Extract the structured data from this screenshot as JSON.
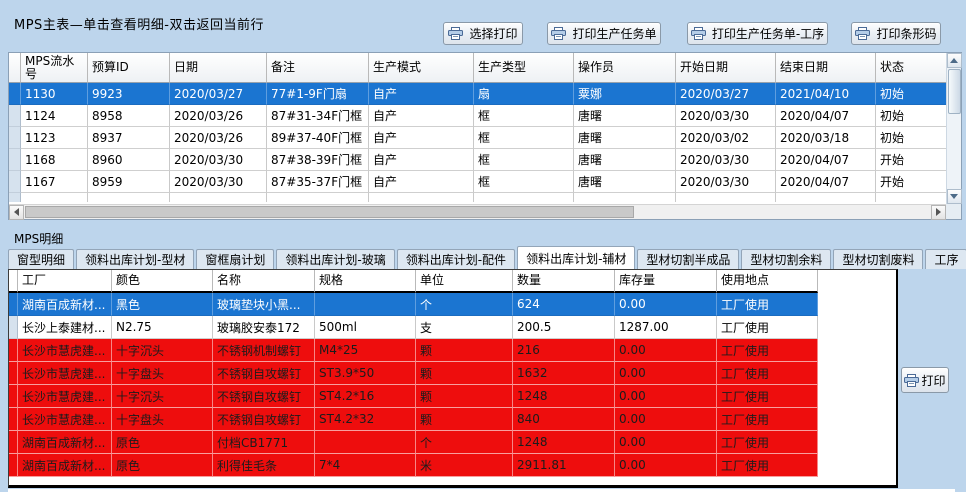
{
  "colors": {
    "selection_row": "#1b75d1",
    "alert_row": "#ee0d0d",
    "background": "#bdd5ec",
    "selected_text": "#ffffff"
  },
  "master": {
    "title": "MPS主表—单击查看明细-双击返回当前行",
    "toolbar_buttons": [
      "选择打印",
      "打印生产任务单",
      "打印生产任务单-工序",
      "打印条形码"
    ],
    "columns": [
      "MPS流水号",
      "预算ID",
      "日期",
      "备注",
      "生产模式",
      "生产类型",
      "操作员",
      "开始日期",
      "结束日期",
      "状态"
    ],
    "rows": [
      {
        "state": "selected",
        "cells": [
          "1130",
          "9923",
          "2020/03/27",
          "77#1-9F门扇",
          "自产",
          "扇",
          "粟娜",
          "2020/03/27",
          "2021/04/10",
          "初始"
        ]
      },
      {
        "state": "normal",
        "cells": [
          "1124",
          "8958",
          "2020/03/26",
          "87#31-34F门框",
          "自产",
          "框",
          "唐曙",
          "2020/03/30",
          "2020/04/07",
          "初始"
        ]
      },
      {
        "state": "normal",
        "cells": [
          "1123",
          "8937",
          "2020/03/26",
          "89#37-40F门框",
          "自产",
          "框",
          "唐曙",
          "2020/03/02",
          "2020/03/18",
          "初始"
        ]
      },
      {
        "state": "normal",
        "cells": [
          "1168",
          "8960",
          "2020/03/30",
          "87#38-39F门框",
          "自产",
          "框",
          "唐曙",
          "2020/03/30",
          "2020/04/07",
          "开始"
        ]
      },
      {
        "state": "normal",
        "cells": [
          "1167",
          "8959",
          "2020/03/30",
          "87#35-37F门框",
          "自产",
          "框",
          "唐曙",
          "2020/03/30",
          "2020/04/07",
          "开始"
        ]
      }
    ]
  },
  "detail": {
    "label": "MPS明细",
    "tabs": [
      "窗型明细",
      "领料出库计划-型材",
      "窗框扇计划",
      "领料出库计划-玻璃",
      "领料出库计划-配件",
      "领料出库计划-辅材",
      "型材切割半成品",
      "型材切割余料",
      "型材切割废料",
      "工序"
    ],
    "active_tab": "领料出库计划-辅材",
    "print_button": "打印",
    "columns": [
      "工厂",
      "颜色",
      "名称",
      "规格",
      "单位",
      "数量",
      "库存量",
      "使用地点"
    ],
    "rows": [
      {
        "state": "selected",
        "cells": [
          "湖南百成新材...",
          "黑色",
          "玻璃垫块小黑...",
          "",
          "个",
          "624",
          "0.00",
          "工厂使用"
        ]
      },
      {
        "state": "normal",
        "cells": [
          "长沙上泰建材...",
          "N2.75",
          "玻璃胶安泰172",
          "500ml",
          "支",
          "200.5",
          "1287.00",
          "工厂使用"
        ]
      },
      {
        "state": "alert",
        "cells": [
          "长沙市慧虎建...",
          "十字沉头",
          "不锈钢机制螺钉",
          "M4*25",
          "颗",
          "216",
          "0.00",
          "工厂使用"
        ]
      },
      {
        "state": "alert",
        "cells": [
          "长沙市慧虎建...",
          "十字盘头",
          "不锈钢自攻螺钉",
          "ST3.9*50",
          "颗",
          "1632",
          "0.00",
          "工厂使用"
        ]
      },
      {
        "state": "alert",
        "cells": [
          "长沙市慧虎建...",
          "十字沉头",
          "不锈钢自攻螺钉",
          "ST4.2*16",
          "颗",
          "1248",
          "0.00",
          "工厂使用"
        ]
      },
      {
        "state": "alert",
        "cells": [
          "长沙市慧虎建...",
          "十字盘头",
          "不锈钢自攻螺钉",
          "ST4.2*32",
          "颗",
          "840",
          "0.00",
          "工厂使用"
        ]
      },
      {
        "state": "alert",
        "cells": [
          "湖南百成新材...",
          "原色",
          "付档CB1771",
          "",
          "个",
          "1248",
          "0.00",
          "工厂使用"
        ]
      },
      {
        "state": "alert",
        "cells": [
          "湖南百成新材...",
          "原色",
          "利得佳毛条",
          "7*4",
          "米",
          "2911.81",
          "0.00",
          "工厂使用"
        ]
      }
    ]
  }
}
